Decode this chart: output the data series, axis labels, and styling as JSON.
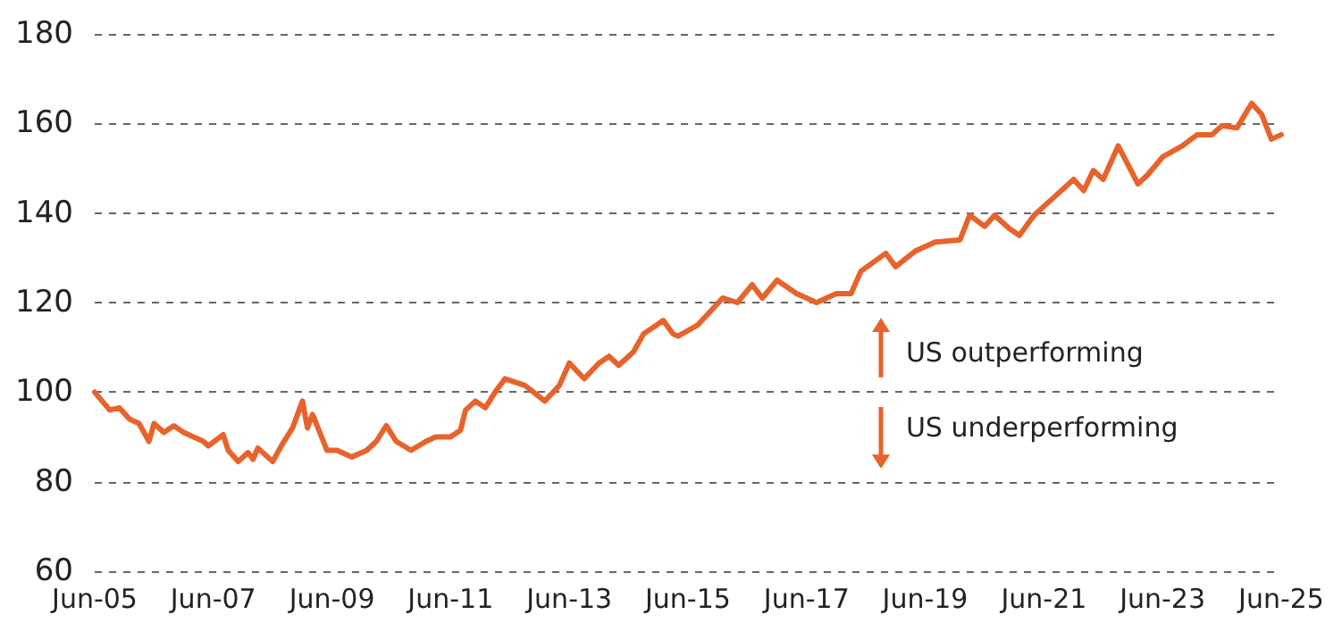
{
  "chart_data": {
    "type": "line",
    "line_style": "solid",
    "marker": "none",
    "grid": "y",
    "xlim": [
      "2005-06",
      "2025-06"
    ],
    "xticks": [
      {
        "value": "2005-06",
        "label": "Jun-05"
      },
      {
        "value": "2007-06",
        "label": "Jun-07"
      },
      {
        "value": "2009-06",
        "label": "Jun-09"
      },
      {
        "value": "2011-06",
        "label": "Jun-11"
      },
      {
        "value": "2013-06",
        "label": "Jun-13"
      },
      {
        "value": "2015-06",
        "label": "Jun-15"
      },
      {
        "value": "2017-06",
        "label": "Jun-17"
      },
      {
        "value": "2019-06",
        "label": "Jun-19"
      },
      {
        "value": "2021-06",
        "label": "Jun-21"
      },
      {
        "value": "2023-06",
        "label": "Jun-23"
      },
      {
        "value": "2025-06",
        "label": "Jun-25"
      }
    ],
    "ylim": [
      60,
      180
    ],
    "yticks": [
      60,
      80,
      100,
      120,
      140,
      160,
      180
    ],
    "annotations": [
      "US outperforming",
      "US underperforming"
    ],
    "series": [
      {
        "color": "#e8632b",
        "x": [
          "2005-06",
          "2005-09",
          "2005-11",
          "2006-01",
          "2006-03",
          "2006-05",
          "2006-06",
          "2006-08",
          "2006-10",
          "2006-12",
          "2007-04",
          "2007-05",
          "2007-08",
          "2007-09",
          "2007-11",
          "2008-01",
          "2008-02",
          "2008-03",
          "2008-06",
          "2008-07",
          "2008-08",
          "2008-10",
          "2008-12",
          "2009-01",
          "2009-02",
          "2009-03",
          "2009-05",
          "2009-07",
          "2009-10",
          "2010-01",
          "2010-03",
          "2010-05",
          "2010-07",
          "2010-10",
          "2011-01",
          "2011-03",
          "2011-06",
          "2011-08",
          "2011-09",
          "2011-11",
          "2012-01",
          "2012-03",
          "2012-05",
          "2012-09",
          "2013-01",
          "2013-04",
          "2013-06",
          "2013-09",
          "2013-12",
          "2014-02",
          "2014-04",
          "2014-07",
          "2014-09",
          "2015-01",
          "2015-03",
          "2015-04",
          "2015-08",
          "2016-01",
          "2016-04",
          "2016-07",
          "2016-09",
          "2016-12",
          "2017-04",
          "2017-08",
          "2017-12",
          "2018-03",
          "2018-05",
          "2018-10",
          "2018-12",
          "2019-04",
          "2019-08",
          "2020-01",
          "2020-03",
          "2020-06",
          "2020-08",
          "2020-11",
          "2021-01",
          "2021-04",
          "2021-08",
          "2021-12",
          "2022-02",
          "2022-04",
          "2022-06",
          "2022-09",
          "2023-01",
          "2023-03",
          "2023-06",
          "2023-10",
          "2024-01",
          "2024-04",
          "2024-06",
          "2024-09",
          "2024-12",
          "2025-02",
          "2025-04",
          "2025-06"
        ],
        "values": [
          100,
          96,
          96.5,
          94,
          93,
          89,
          93,
          91,
          92.5,
          91,
          89,
          88,
          90.5,
          87,
          84.5,
          86.5,
          85,
          87.5,
          84.5,
          86.5,
          88.5,
          92,
          98,
          92,
          95,
          92.5,
          87,
          87,
          85.5,
          87,
          89,
          92.5,
          89,
          87,
          89,
          90,
          90,
          91.5,
          96,
          98,
          96.5,
          100,
          103,
          101.5,
          98,
          101.5,
          106.5,
          103,
          106.5,
          108,
          106,
          109,
          113,
          116,
          113,
          112.5,
          115,
          121,
          120,
          124,
          121,
          125,
          122,
          120,
          122,
          122,
          127,
          131,
          128,
          131.5,
          133.5,
          134,
          139.5,
          137,
          139.5,
          136.5,
          135,
          139.5,
          143.5,
          147.5,
          145,
          149.5,
          147.5,
          155,
          146.5,
          148.5,
          152.5,
          155,
          157.5,
          157.5,
          159.5,
          159,
          164.5,
          162,
          156.5,
          157.5
        ]
      }
    ]
  }
}
